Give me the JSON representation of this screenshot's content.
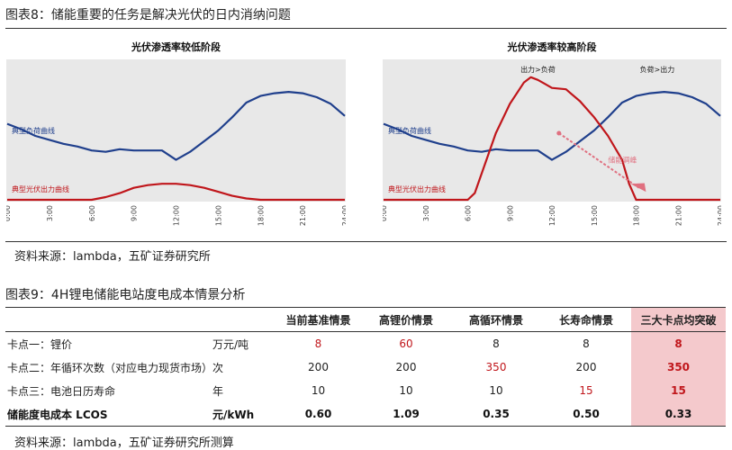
{
  "figure8": {
    "title": "图表8：储能重要的任务是解决光伏的日内消纳问题",
    "source": "资料来源：lambda，五矿证券研究所",
    "x_ticks": [
      "0:00",
      "3:00",
      "6:00",
      "9:00",
      "12:00",
      "15:00",
      "18:00",
      "21:00",
      "24:00"
    ]
  },
  "chart_data": [
    {
      "type": "line",
      "title": "光伏渗透率较低阶段",
      "x_ticks": [
        "0:00",
        "3:00",
        "6:00",
        "9:00",
        "12:00",
        "15:00",
        "18:00",
        "21:00",
        "24:00"
      ],
      "series": [
        {
          "name": "典型负荷曲线",
          "color": "#1f3f8c",
          "x": [
            0,
            1,
            2,
            3,
            4,
            5,
            6,
            7,
            8,
            9,
            10,
            11,
            12,
            13,
            14,
            15,
            16,
            17,
            18,
            19,
            20,
            21,
            22,
            23,
            24
          ],
          "values": [
            57,
            53,
            48,
            45,
            42,
            40,
            37,
            36,
            38,
            37,
            37,
            37,
            30,
            36,
            44,
            52,
            62,
            73,
            78,
            80,
            81,
            80,
            77,
            72,
            63
          ]
        },
        {
          "name": "典型光伏出力曲线",
          "color": "#c0161b",
          "x": [
            0,
            6,
            7,
            8,
            9,
            10,
            11,
            12,
            13,
            14,
            15,
            16,
            17,
            18,
            24
          ],
          "values": [
            0,
            0,
            2,
            5,
            9,
            11,
            12,
            12,
            11,
            9,
            6,
            3,
            1,
            0,
            0
          ]
        }
      ]
    },
    {
      "type": "line",
      "title": "光伏渗透率较高阶段",
      "x_ticks": [
        "0:00",
        "3:00",
        "6:00",
        "9:00",
        "12:00",
        "15:00",
        "18:00",
        "21:00",
        "24:00"
      ],
      "annotations": [
        "出力>负荷",
        "负荷>出力",
        "储能调峰"
      ],
      "series": [
        {
          "name": "典型负荷曲线",
          "color": "#1f3f8c",
          "x": [
            0,
            1,
            2,
            3,
            4,
            5,
            6,
            7,
            8,
            9,
            10,
            11,
            12,
            13,
            14,
            15,
            16,
            17,
            18,
            19,
            20,
            21,
            22,
            23,
            24
          ],
          "values": [
            57,
            53,
            48,
            45,
            42,
            40,
            37,
            36,
            38,
            37,
            37,
            37,
            30,
            36,
            44,
            52,
            62,
            73,
            78,
            80,
            81,
            80,
            77,
            72,
            63
          ]
        },
        {
          "name": "典型光伏出力曲线",
          "color": "#c0161b",
          "x": [
            0,
            6,
            6.5,
            7,
            8,
            9,
            10,
            10.5,
            11,
            11.5,
            12,
            13,
            14,
            15,
            16,
            17,
            17.5,
            18,
            24
          ],
          "values": [
            0,
            0,
            5,
            20,
            50,
            72,
            88,
            92,
            90,
            87,
            84,
            83,
            74,
            62,
            48,
            30,
            12,
            0,
            0
          ]
        }
      ]
    }
  ],
  "figure9": {
    "title": "图表9：4H锂电储能电站度电成本情景分析",
    "source": "资料来源：lambda，五矿证券研究所测算",
    "headers": [
      "当前基准情景",
      "高锂价情景",
      "高循环情景",
      "长寿命情景",
      "三大卡点均突破"
    ],
    "rows": [
      {
        "label": "卡点一：锂价",
        "unit": "万元/吨",
        "values": [
          "8",
          "60",
          "8",
          "8",
          "8"
        ],
        "red": [
          true,
          true,
          false,
          false,
          true
        ]
      },
      {
        "label": "卡点二：年循环次数（对应电力现货市场）",
        "unit": "次",
        "values": [
          "200",
          "200",
          "350",
          "200",
          "350"
        ],
        "red": [
          false,
          false,
          true,
          false,
          true
        ]
      },
      {
        "label": "卡点三：电池日历寿命",
        "unit": "年",
        "values": [
          "10",
          "10",
          "10",
          "15",
          "15"
        ],
        "red": [
          false,
          false,
          false,
          true,
          true
        ]
      },
      {
        "label": "储能度电成本 LCOS",
        "unit": "元/kWh",
        "values": [
          "0.60",
          "1.09",
          "0.35",
          "0.50",
          "0.33"
        ],
        "red": [
          false,
          false,
          false,
          false,
          false
        ]
      }
    ]
  }
}
